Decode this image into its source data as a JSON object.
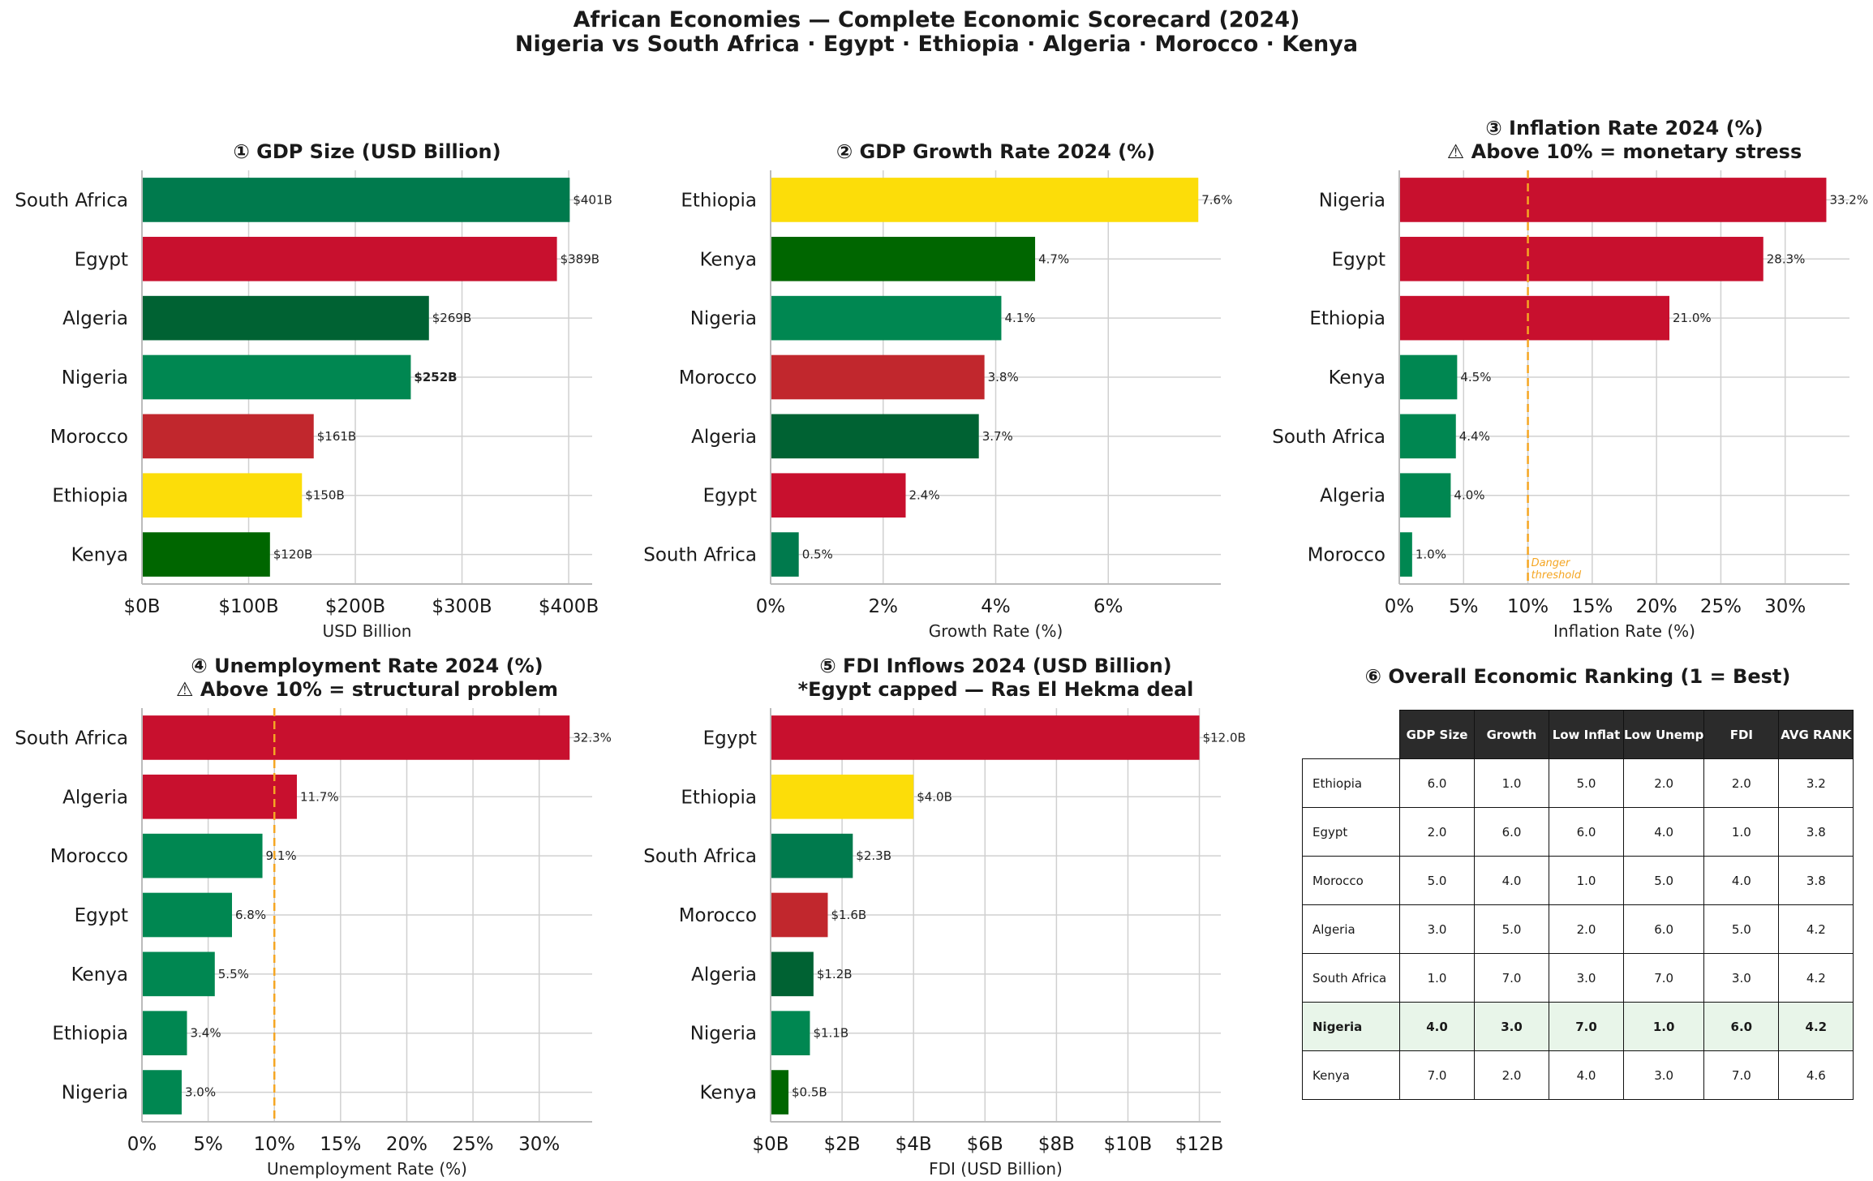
{
  "figure": {
    "title_line1": "African Economies — Complete Economic Scorecard (2024)",
    "title_line2": "Nigeria vs South Africa · Egypt · Ethiopia · Algeria · Morocco · Kenya"
  },
  "chart_data": [
    {
      "id": "gdp",
      "type": "bar",
      "orientation": "horizontal",
      "title": "① GDP Size (USD Billion)",
      "xlabel": "USD Billion",
      "categories": [
        "South Africa",
        "Egypt",
        "Algeria",
        "Nigeria",
        "Morocco",
        "Ethiopia",
        "Kenya"
      ],
      "values": [
        401,
        389,
        269,
        252,
        161,
        150,
        120
      ],
      "value_labels": [
        "$401B",
        "$389B",
        "$269B",
        "$252B",
        "$161B",
        "$150B",
        "$120B"
      ],
      "highlight": "Nigeria",
      "colors": [
        "#007a4d",
        "#c8102e",
        "#006233",
        "#008751",
        "#c1272d",
        "#fcdd09",
        "#006600"
      ],
      "xlim": [
        0,
        422
      ],
      "xticks": [
        0,
        100,
        200,
        300,
        400
      ],
      "xtick_labels": [
        "$0B",
        "$100B",
        "$200B",
        "$300B",
        "$400B"
      ],
      "grid": true
    },
    {
      "id": "growth",
      "type": "bar",
      "orientation": "horizontal",
      "title": "② GDP Growth Rate 2024 (%)",
      "xlabel": "Growth Rate (%)",
      "categories": [
        "Ethiopia",
        "Kenya",
        "Nigeria",
        "Morocco",
        "Algeria",
        "Egypt",
        "South Africa"
      ],
      "values": [
        7.6,
        4.7,
        4.1,
        3.8,
        3.7,
        2.4,
        0.5
      ],
      "value_labels": [
        "7.6%",
        "4.7%",
        "4.1%",
        "3.8%",
        "3.7%",
        "2.4%",
        "0.5%"
      ],
      "colors": [
        "#fcdd09",
        "#006600",
        "#008751",
        "#c1272d",
        "#006233",
        "#c8102e",
        "#007a4d"
      ],
      "xlim": [
        0,
        8.0
      ],
      "xticks": [
        0,
        2,
        4,
        6
      ],
      "xtick_labels": [
        "0%",
        "2%",
        "4%",
        "6%"
      ],
      "grid": true
    },
    {
      "id": "inflation",
      "type": "bar",
      "orientation": "horizontal",
      "title": "③ Inflation Rate 2024 (%)",
      "subtitle": "⚠ Above 10% = monetary stress",
      "xlabel": "Inflation Rate (%)",
      "categories": [
        "Nigeria",
        "Egypt",
        "Ethiopia",
        "Kenya",
        "South Africa",
        "Algeria",
        "Morocco"
      ],
      "values": [
        33.2,
        28.3,
        21.0,
        4.5,
        4.4,
        4.0,
        1.0
      ],
      "value_labels": [
        "33.2%",
        "28.3%",
        "21.0%",
        "4.5%",
        "4.4%",
        "4.0%",
        "1.0%"
      ],
      "colors": [
        "#c8102e",
        "#c8102e",
        "#c8102e",
        "#008751",
        "#008751",
        "#008751",
        "#008751"
      ],
      "threshold": 10,
      "threshold_label": [
        "Danger",
        "threshold"
      ],
      "threshold_color": "#f5a623",
      "xlim": [
        0,
        35
      ],
      "xticks": [
        0,
        5,
        10,
        15,
        20,
        25,
        30
      ],
      "xtick_labels": [
        "0%",
        "5%",
        "10%",
        "15%",
        "20%",
        "25%",
        "30%"
      ],
      "grid": true
    },
    {
      "id": "unemployment",
      "type": "bar",
      "orientation": "horizontal",
      "title": "④ Unemployment Rate 2024 (%)",
      "subtitle": "⚠ Above 10% = structural problem",
      "xlabel": "Unemployment Rate (%)",
      "categories": [
        "South Africa",
        "Algeria",
        "Morocco",
        "Egypt",
        "Kenya",
        "Ethiopia",
        "Nigeria"
      ],
      "values": [
        32.3,
        11.7,
        9.1,
        6.8,
        5.5,
        3.4,
        3.0
      ],
      "value_labels": [
        "32.3%",
        "11.7%",
        "9.1%",
        "6.8%",
        "5.5%",
        "3.4%",
        "3.0%"
      ],
      "colors": [
        "#c8102e",
        "#c8102e",
        "#008751",
        "#008751",
        "#008751",
        "#008751",
        "#008751"
      ],
      "threshold": 10,
      "threshold_color": "#f5a623",
      "xlim": [
        0,
        34
      ],
      "xticks": [
        0,
        5,
        10,
        15,
        20,
        25,
        30
      ],
      "xtick_labels": [
        "0%",
        "5%",
        "10%",
        "15%",
        "20%",
        "25%",
        "30%"
      ],
      "grid": true
    },
    {
      "id": "fdi",
      "type": "bar",
      "orientation": "horizontal",
      "title": "⑤ FDI Inflows 2024 (USD Billion)",
      "subtitle": "*Egypt capped — Ras El Hekma deal",
      "xlabel": "FDI (USD Billion)",
      "categories": [
        "Egypt",
        "Ethiopia",
        "South Africa",
        "Morocco",
        "Algeria",
        "Nigeria",
        "Kenya"
      ],
      "values": [
        12.0,
        4.0,
        2.3,
        1.6,
        1.2,
        1.1,
        0.5
      ],
      "value_labels": [
        "$12.0B",
        "$4.0B",
        "$2.3B",
        "$1.6B",
        "$1.2B",
        "$1.1B",
        "$0.5B"
      ],
      "colors": [
        "#c8102e",
        "#fcdd09",
        "#007a4d",
        "#c1272d",
        "#006233",
        "#008751",
        "#006600"
      ],
      "xlim": [
        0,
        12.6
      ],
      "xticks": [
        0,
        2,
        4,
        6,
        8,
        10,
        12
      ],
      "xtick_labels": [
        "$0B",
        "$2B",
        "$4B",
        "$6B",
        "$8B",
        "$10B",
        "$12B"
      ],
      "grid": true
    },
    {
      "id": "ranking",
      "type": "table",
      "title": "⑥ Overall Economic Ranking (1 = Best)",
      "columns": [
        "GDP Size",
        "Growth",
        "Low Inflat",
        "Low Unemp",
        "FDI",
        "AVG RANK"
      ],
      "rows": [
        {
          "name": "Ethiopia",
          "values": [
            "6.0",
            "1.0",
            "5.0",
            "2.0",
            "2.0",
            "3.2"
          ]
        },
        {
          "name": "Egypt",
          "values": [
            "2.0",
            "6.0",
            "6.0",
            "4.0",
            "1.0",
            "3.8"
          ]
        },
        {
          "name": "Morocco",
          "values": [
            "5.0",
            "4.0",
            "1.0",
            "5.0",
            "4.0",
            "3.8"
          ]
        },
        {
          "name": "Algeria",
          "values": [
            "3.0",
            "5.0",
            "2.0",
            "6.0",
            "5.0",
            "4.2"
          ]
        },
        {
          "name": "South Africa",
          "values": [
            "1.0",
            "7.0",
            "3.0",
            "7.0",
            "3.0",
            "4.2"
          ]
        },
        {
          "name": "Nigeria",
          "values": [
            "4.0",
            "3.0",
            "7.0",
            "1.0",
            "6.0",
            "4.2"
          ],
          "highlight": true
        },
        {
          "name": "Kenya",
          "values": [
            "7.0",
            "2.0",
            "4.0",
            "3.0",
            "7.0",
            "4.6"
          ]
        }
      ],
      "header_color": "#2b2b2b",
      "highlight_color": "#e8f5e9"
    }
  ]
}
